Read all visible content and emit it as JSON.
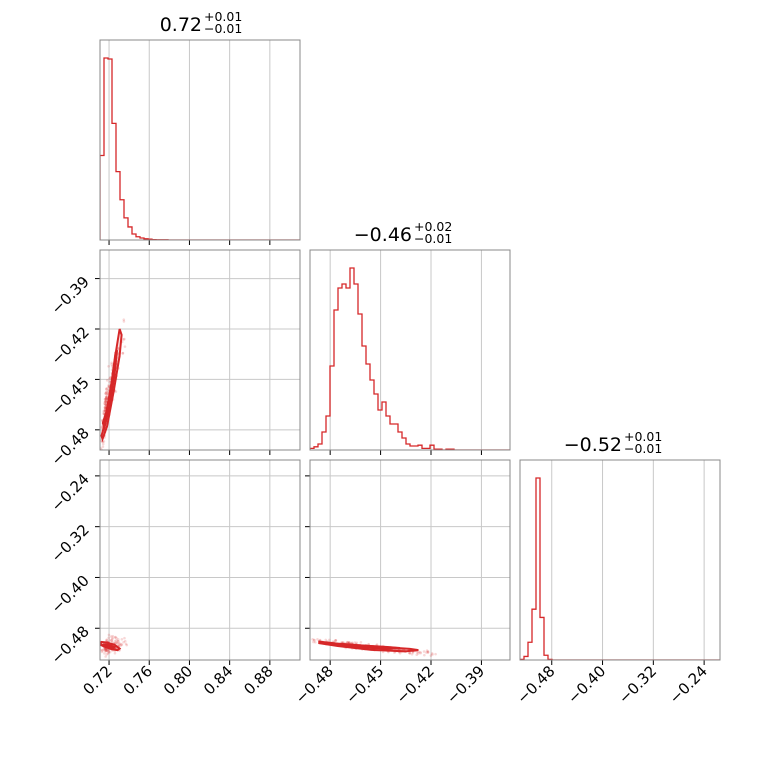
{
  "chart_data": {
    "type": "corner",
    "color": "#d62728",
    "grid": true,
    "parameters": [
      {
        "title": {
          "median": "0.72",
          "plus": "+0.01",
          "minus": "−0.01"
        },
        "range": [
          0.711,
          0.91
        ]
      },
      {
        "title": {
          "median": "−0.46",
          "plus": "+0.02",
          "minus": "−0.01"
        },
        "range": [
          -0.492,
          -0.373
        ]
      },
      {
        "title": {
          "median": "−0.52",
          "plus": "+0.01",
          "minus": "−0.01"
        },
        "range": [
          -0.53,
          -0.215
        ]
      }
    ],
    "ticks": [
      [
        {
          "v": 0.72,
          "label": "0.72"
        },
        {
          "v": 0.76,
          "label": "0.76"
        },
        {
          "v": 0.8,
          "label": "0.80"
        },
        {
          "v": 0.84,
          "label": "0.84"
        },
        {
          "v": 0.88,
          "label": "0.88"
        }
      ],
      [
        {
          "v": -0.48,
          "label": "−0.48"
        },
        {
          "v": -0.45,
          "label": "−0.45"
        },
        {
          "v": -0.42,
          "label": "−0.42"
        },
        {
          "v": -0.39,
          "label": "−0.39"
        }
      ],
      [
        {
          "v": -0.48,
          "label": "−0.48"
        },
        {
          "v": -0.4,
          "label": "−0.40"
        },
        {
          "v": -0.32,
          "label": "−0.32"
        },
        {
          "v": -0.24,
          "label": "−0.24"
        }
      ]
    ],
    "histograms": [
      {
        "edges_start": 0.711,
        "bin_width": 0.00398,
        "counts": [
          420,
          905,
          900,
          580,
          340,
          200,
          110,
          65,
          30,
          16,
          10,
          6,
          4,
          2,
          1,
          1,
          1,
          0,
          0,
          0,
          0,
          0,
          0,
          0,
          0,
          0,
          0,
          0,
          0,
          0,
          0,
          0,
          0,
          0,
          0,
          0,
          0,
          0,
          0,
          0,
          0,
          0,
          0,
          0,
          0,
          0,
          0,
          0,
          0,
          0
        ]
      },
      {
        "edges_start": -0.492,
        "bin_width": 0.00238,
        "counts": [
          4,
          8,
          15,
          45,
          85,
          210,
          350,
          405,
          415,
          405,
          455,
          415,
          340,
          260,
          215,
          175,
          140,
          100,
          120,
          85,
          65,
          65,
          45,
          30,
          15,
          10,
          10,
          12,
          4,
          4,
          12,
          2,
          2,
          0,
          2,
          2,
          0,
          0,
          0,
          0,
          0,
          0,
          0,
          0,
          0,
          0,
          0,
          0,
          0,
          0
        ]
      },
      {
        "edges_start": -0.53,
        "bin_width": 0.0063,
        "counts": [
          5,
          30,
          150,
          430,
          1540,
          360,
          40,
          5,
          0,
          0,
          0,
          0,
          0,
          0,
          0,
          0,
          0,
          0,
          0,
          0,
          0,
          0,
          0,
          0,
          0,
          0,
          0,
          0,
          0,
          0,
          0,
          0,
          0,
          0,
          0,
          0,
          0,
          0,
          0,
          0,
          0,
          0,
          0,
          0,
          0,
          0,
          0,
          0,
          0,
          0
        ]
      }
    ],
    "pairs": [
      {
        "x_param": 0,
        "y_param": 1,
        "contours": [
          [
            [
              0.7125,
              -0.4835
            ],
            [
              0.715,
              -0.478
            ],
            [
              0.722,
              -0.4545
            ],
            [
              0.727,
              -0.433
            ],
            [
              0.7305,
              -0.42
            ],
            [
              0.7325,
              -0.4235
            ],
            [
              0.7305,
              -0.436
            ],
            [
              0.7245,
              -0.4575
            ],
            [
              0.718,
              -0.478
            ],
            [
              0.7135,
              -0.4855
            ]
          ],
          [
            [
              0.7138,
              -0.476
            ],
            [
              0.7175,
              -0.469
            ],
            [
              0.7225,
              -0.452
            ],
            [
              0.7265,
              -0.434
            ],
            [
              0.7278,
              -0.4335
            ],
            [
              0.7255,
              -0.447
            ],
            [
              0.7205,
              -0.466
            ],
            [
              0.7155,
              -0.4785
            ]
          ]
        ],
        "scatter": {
          "center": [
            0.718,
            -0.462
          ],
          "spread": [
            0.0072,
            0.0165
          ],
          "corr": 0.93,
          "n": 260,
          "seed": 11
        }
      },
      {
        "x_param": 0,
        "y_param": 2,
        "contours": [
          [
            [
              0.7115,
              -0.5055
            ],
            [
              0.7145,
              -0.5085
            ],
            [
              0.7225,
              -0.513
            ],
            [
              0.7285,
              -0.5145
            ],
            [
              0.7305,
              -0.512
            ],
            [
              0.7255,
              -0.506
            ],
            [
              0.7175,
              -0.5025
            ],
            [
              0.7125,
              -0.5015
            ]
          ],
          [
            [
              0.713,
              -0.507
            ],
            [
              0.7185,
              -0.5095
            ],
            [
              0.724,
              -0.5115
            ],
            [
              0.7252,
              -0.5095
            ],
            [
              0.7195,
              -0.5065
            ],
            [
              0.7145,
              -0.5055
            ]
          ]
        ],
        "scatter": {
          "center": [
            0.72,
            -0.508
          ],
          "spread": [
            0.007,
            0.006
          ],
          "corr": 0.3,
          "n": 150,
          "seed": 23
        }
      },
      {
        "x_param": 1,
        "y_param": 2,
        "contours": [
          [
            [
              -0.4865,
              -0.501
            ],
            [
              -0.4745,
              -0.5045
            ],
            [
              -0.4545,
              -0.5085
            ],
            [
              -0.4325,
              -0.5125
            ],
            [
              -0.4275,
              -0.5145
            ],
            [
              -0.4355,
              -0.5165
            ],
            [
              -0.4555,
              -0.514
            ],
            [
              -0.4755,
              -0.508
            ],
            [
              -0.4865,
              -0.5035
            ]
          ],
          [
            [
              -0.481,
              -0.5035
            ],
            [
              -0.465,
              -0.5065
            ],
            [
              -0.446,
              -0.5095
            ],
            [
              -0.4385,
              -0.511
            ],
            [
              -0.4455,
              -0.5125
            ],
            [
              -0.466,
              -0.5095
            ],
            [
              -0.4805,
              -0.5055
            ]
          ]
        ],
        "scatter": {
          "center": [
            -0.458,
            -0.509
          ],
          "spread": [
            0.017,
            0.0055
          ],
          "corr": -0.9,
          "n": 260,
          "seed": 37
        }
      }
    ]
  }
}
